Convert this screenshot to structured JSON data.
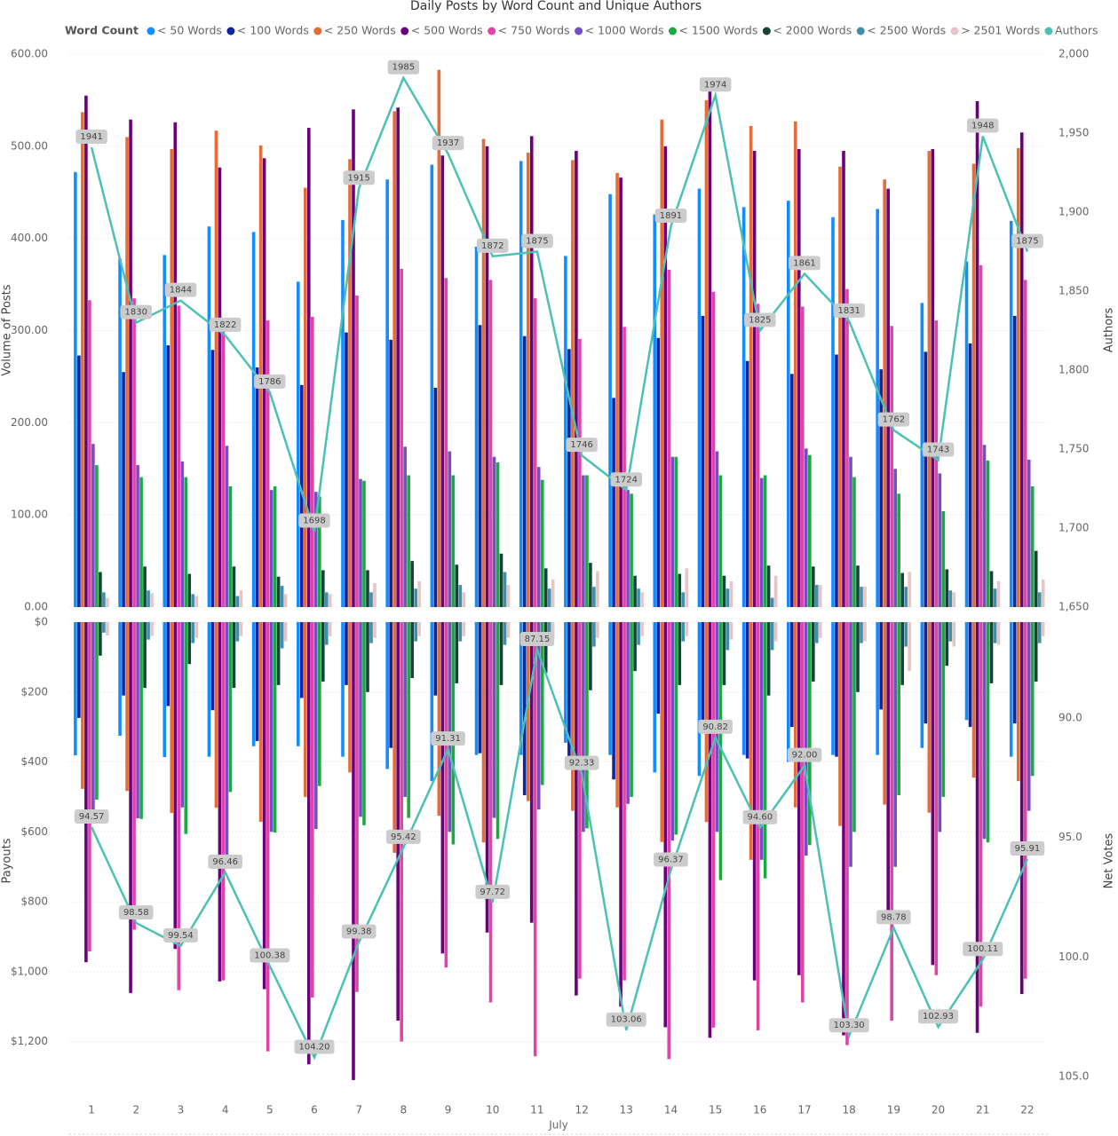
{
  "chart_data": {
    "type": "bar",
    "title": "Daily Posts by Word Count and Unique Authors",
    "legend_title": "Word Count",
    "categories": [
      "1",
      "2",
      "3",
      "4",
      "5",
      "6",
      "7",
      "8",
      "9",
      "10",
      "11",
      "12",
      "13",
      "14",
      "15",
      "16",
      "17",
      "18",
      "19",
      "20",
      "21",
      "22"
    ],
    "x_label": "July",
    "ylabel": "Volume of Posts",
    "ylim": [
      0,
      600
    ],
    "yticks": [
      {
        "value": 0,
        "label": "0.00"
      },
      {
        "value": 100,
        "label": "100.00"
      },
      {
        "value": 200,
        "label": "200.00"
      },
      {
        "value": 300,
        "label": "300.00"
      },
      {
        "value": 400,
        "label": "400.00"
      },
      {
        "value": 500,
        "label": "500.00"
      },
      {
        "value": 600,
        "label": "600.00"
      }
    ],
    "y2label": "Authors",
    "y2lim": [
      1650,
      2000
    ],
    "y2ticks": [
      {
        "value": 1650,
        "label": "1,650"
      },
      {
        "value": 1700,
        "label": "1,700"
      },
      {
        "value": 1750,
        "label": "1,750"
      },
      {
        "value": 1800,
        "label": "1,800"
      },
      {
        "value": 1850,
        "label": "1,850"
      },
      {
        "value": 1900,
        "label": "1,900"
      },
      {
        "value": 1950,
        "label": "1,950"
      },
      {
        "value": 2000,
        "label": "2,000"
      }
    ],
    "payout_label": "Payouts",
    "payout_lim": [
      0,
      1300
    ],
    "payout_ticks": [
      {
        "value": 0,
        "label": "$0"
      },
      {
        "value": 200,
        "label": "$200"
      },
      {
        "value": 400,
        "label": "$400"
      },
      {
        "value": 600,
        "label": "$600"
      },
      {
        "value": 800,
        "label": "$800"
      },
      {
        "value": 1000,
        "label": "$1,000"
      },
      {
        "value": 1200,
        "label": "$1,200"
      }
    ],
    "votes_label": "Net Votes",
    "votes_lim": [
      86,
      105
    ],
    "votes_ticks": [
      {
        "value": 90,
        "label": "90.0"
      },
      {
        "value": 95,
        "label": "95.0"
      },
      {
        "value": 100,
        "label": "100.0"
      },
      {
        "value": 105,
        "label": "105.0"
      }
    ],
    "grid": true,
    "series": [
      {
        "name": "< 50 Words",
        "color": "#118DFF",
        "values": [
          472,
          378,
          382,
          413,
          407,
          353,
          420,
          464,
          480,
          391,
          484,
          381,
          448,
          426,
          454,
          434,
          441,
          423,
          432,
          330,
          375,
          419
        ],
        "payouts": [
          381,
          325,
          386,
          385,
          355,
          355,
          385,
          420,
          455,
          380,
          380,
          345,
          380,
          430,
          440,
          380,
          400,
          380,
          380,
          360,
          280,
          385
        ]
      },
      {
        "name": "< 100 Words",
        "color": "#12239E",
        "values": [
          273,
          255,
          284,
          279,
          260,
          241,
          298,
          290,
          238,
          306,
          294,
          280,
          227,
          292,
          316,
          267,
          253,
          274,
          258,
          277,
          286,
          316
        ],
        "payouts": [
          274,
          210,
          240,
          252,
          340,
          217,
          180,
          360,
          210,
          375,
          495,
          390,
          450,
          262,
          280,
          390,
          300,
          385,
          250,
          290,
          300,
          290
        ]
      },
      {
        "name": "< 250 Words",
        "color": "#E66C37",
        "values": [
          537,
          510,
          497,
          517,
          501,
          455,
          486,
          538,
          583,
          508,
          493,
          485,
          471,
          529,
          550,
          522,
          527,
          478,
          464,
          495,
          481,
          498
        ],
        "payouts": [
          477,
          483,
          546,
          531,
          571,
          500,
          430,
          660,
          554,
          630,
          512,
          540,
          530,
          629,
          572,
          680,
          530,
          583,
          522,
          545,
          445,
          455
        ]
      },
      {
        "name": "< 500 Words",
        "color": "#6B007B",
        "values": [
          555,
          529,
          526,
          477,
          487,
          520,
          540,
          542,
          490,
          500,
          511,
          495,
          466,
          500,
          565,
          495,
          497,
          495,
          454,
          497,
          549,
          515
        ],
        "payouts": [
          973,
          1061,
          935,
          1028,
          1050,
          1265,
          1310,
          1140,
          948,
          888,
          860,
          1068,
          1100,
          1159,
          1189,
          1025,
          1010,
          1182,
          855,
          981,
          1175,
          1064
        ]
      },
      {
        "name": "< 750 Words",
        "color": "#E044A7",
        "values": [
          333,
          335,
          327,
          313,
          311,
          315,
          338,
          367,
          357,
          355,
          335,
          291,
          304,
          366,
          342,
          329,
          326,
          345,
          305,
          311,
          371,
          355
        ],
        "payouts": [
          942,
          880,
          1053,
          1025,
          1228,
          1074,
          1058,
          1200,
          988,
          1088,
          1242,
          1020,
          1025,
          1250,
          1160,
          1168,
          1088,
          1210,
          1140,
          1010,
          1100,
          1020
        ]
      },
      {
        "name": "< 1000 Words",
        "color": "#744EC2",
        "values": [
          177,
          154,
          158,
          175,
          127,
          125,
          139,
          174,
          169,
          163,
          152,
          143,
          127,
          163,
          169,
          140,
          172,
          163,
          150,
          145,
          176,
          160
        ],
        "payouts": [
          560,
          561,
          530,
          672,
          600,
          592,
          557,
          500,
          600,
          560,
          536,
          600,
          520,
          625,
          600,
          680,
          668,
          700,
          700,
          600,
          620,
          540
        ]
      },
      {
        "name": "< 1500 Words",
        "color": "#1AAB40",
        "values": [
          154,
          141,
          141,
          131,
          131,
          120,
          137,
          143,
          143,
          157,
          138,
          143,
          123,
          163,
          143,
          143,
          165,
          141,
          123,
          104,
          159,
          131
        ],
        "payouts": [
          508,
          563,
          606,
          486,
          602,
          469,
          581,
          560,
          636,
          620,
          466,
          590,
          500,
          608,
          738,
          733,
          638,
          600,
          495,
          500,
          630,
          440
        ]
      },
      {
        "name": "< 2000 Words",
        "color": "#15433A",
        "values": [
          38,
          44,
          36,
          44,
          33,
          40,
          40,
          50,
          46,
          58,
          42,
          48,
          34,
          36,
          34,
          45,
          44,
          45,
          37,
          41,
          39,
          61
        ],
        "payouts": [
          96,
          188,
          120,
          188,
          180,
          170,
          200,
          160,
          175,
          180,
          145,
          195,
          140,
          180,
          180,
          210,
          170,
          200,
          180,
          125,
          175,
          170
        ]
      },
      {
        "name": "< 2500 Words",
        "color": "#3D8FAA",
        "values": [
          16,
          18,
          14,
          12,
          23,
          16,
          16,
          20,
          24,
          38,
          20,
          22,
          20,
          16,
          20,
          10,
          24,
          22,
          22,
          18,
          20,
          16
        ],
        "payouts": [
          30,
          50,
          60,
          55,
          75,
          65,
          60,
          55,
          55,
          65,
          50,
          70,
          65,
          55,
          80,
          80,
          60,
          60,
          70,
          55,
          60,
          60
        ]
      },
      {
        "name": "> 2501 Words",
        "color": "#E8C4C4",
        "values": [
          10,
          15,
          12,
          18,
          14,
          14,
          26,
          28,
          16,
          24,
          30,
          39,
          16,
          42,
          28,
          34,
          24,
          22,
          38,
          16,
          28,
          30
        ],
        "payouts": [
          38,
          40,
          45,
          40,
          55,
          40,
          45,
          40,
          40,
          45,
          45,
          45,
          40,
          40,
          50,
          55,
          45,
          55,
          140,
          70,
          65,
          40
        ]
      }
    ],
    "lines": [
      {
        "name": "Authors",
        "color": "#4BC1B5",
        "axis": "y2",
        "values": [
          1941,
          1830,
          1844,
          1822,
          1786,
          1698,
          1915,
          1985,
          1937,
          1872,
          1875,
          1746,
          1724,
          1891,
          1974,
          1825,
          1861,
          1831,
          1762,
          1743,
          1948,
          1875
        ]
      }
    ],
    "net_votes": {
      "color": "#4BC1B5",
      "values": [
        94.57,
        98.58,
        99.54,
        96.46,
        100.38,
        104.2,
        99.38,
        95.42,
        91.31,
        97.72,
        87.15,
        92.33,
        103.06,
        96.37,
        90.82,
        94.6,
        92,
        103.3,
        98.78,
        102.93,
        100.11,
        95.91
      ],
      "value_labels": [
        "94.57",
        "98.58",
        "99.54",
        "96.46",
        "100.38",
        "104.20",
        "99.38",
        "95.42",
        "91.31",
        "97.72",
        "87.15",
        "92.33",
        "103.06",
        "96.37",
        "90.82",
        "94.60",
        "92.00",
        "103.30",
        "98.78",
        "102.93",
        "100.11",
        "95.91"
      ]
    }
  }
}
